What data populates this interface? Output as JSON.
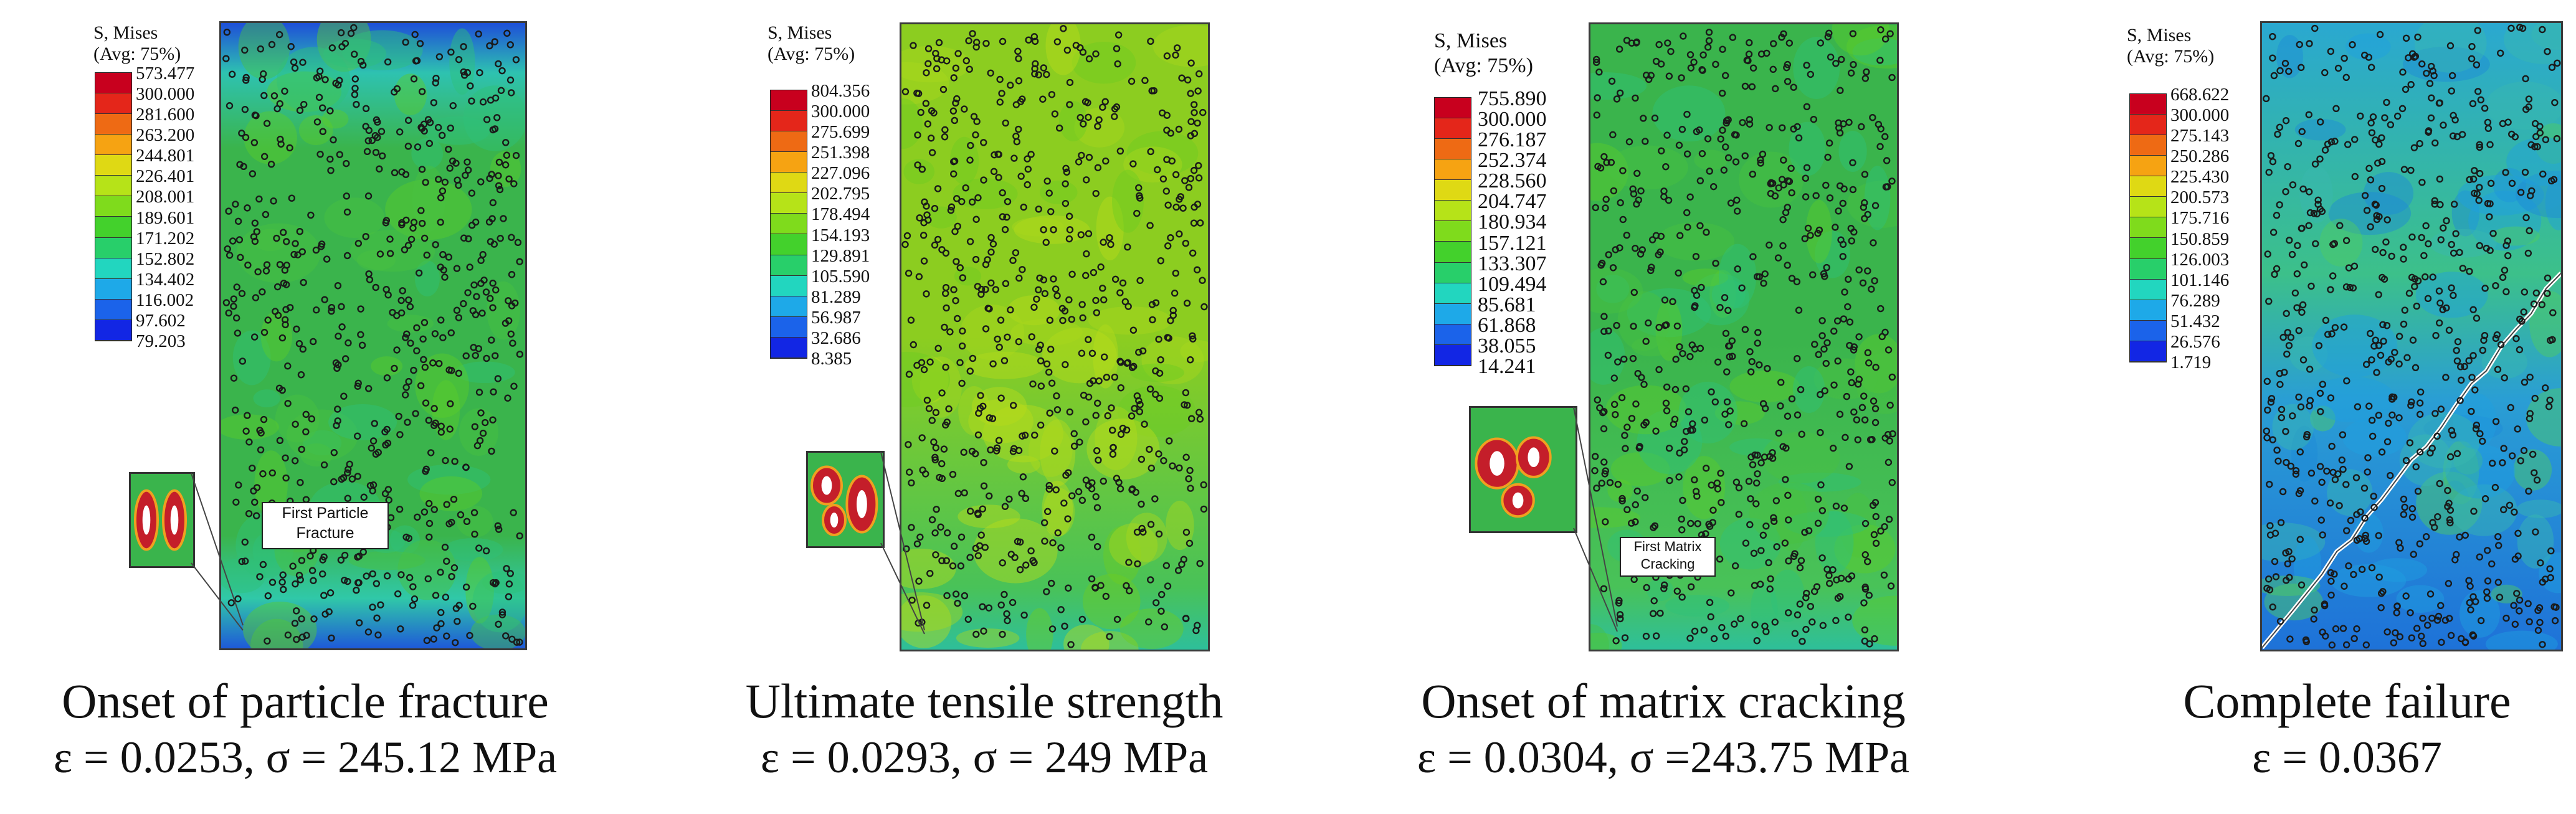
{
  "panels": [
    {
      "legend_title": "S, Mises\n(Avg: 75%)",
      "ticks": [
        "573.477",
        "300.000",
        "281.600",
        "263.200",
        "244.801",
        "226.401",
        "208.001",
        "189.601",
        "171.202",
        "152.802",
        "134.402",
        "116.002",
        "97.602",
        "79.203"
      ],
      "callout": "First Particle\nFracture",
      "caption_title": "Onset of particle fracture",
      "caption_values": "ε = 0.0253, σ = 245.12 MPa"
    },
    {
      "legend_title": "S, Mises\n(Avg: 75%)",
      "ticks": [
        "804.356",
        "300.000",
        "275.699",
        "251.398",
        "227.096",
        "202.795",
        "178.494",
        "154.193",
        "129.891",
        "105.590",
        "81.289",
        "56.987",
        "32.686",
        "8.385"
      ],
      "callout": "",
      "caption_title": "Ultimate tensile strength",
      "caption_values": "ε = 0.0293, σ = 249 MPa"
    },
    {
      "legend_title": "S, Mises\n(Avg: 75%)",
      "ticks": [
        "755.890",
        "300.000",
        "276.187",
        "252.374",
        "228.560",
        "204.747",
        "180.934",
        "157.121",
        "133.307",
        "109.494",
        "85.681",
        "61.868",
        "38.055",
        "14.241"
      ],
      "callout": "First Matrix\nCracking",
      "caption_title": "Onset of matrix cracking",
      "caption_values": "ε = 0.0304, σ =243.75 MPa"
    },
    {
      "legend_title": "S, Mises\n(Avg: 75%)",
      "ticks": [
        "668.622",
        "300.000",
        "275.143",
        "250.286",
        "225.430",
        "200.573",
        "175.716",
        "150.859",
        "126.003",
        "101.146",
        "76.289",
        "51.432",
        "26.576",
        "1.719"
      ],
      "callout": "",
      "caption_title": "Complete failure",
      "caption_values": "ε = 0.0367"
    }
  ],
  "colors": {
    "scale": [
      "#c8001e",
      "#e4261a",
      "#ee6a14",
      "#f6a312",
      "#dfd914",
      "#b6e318",
      "#7fdb1c",
      "#43d12c",
      "#28cf6a",
      "#22d6bf",
      "#1ea9e8",
      "#1b63ea",
      "#1226e4"
    ],
    "field_green": "#3ab44c",
    "field_yellowgreen": "#8ccd20",
    "field_blue": "#1e7bd6",
    "particle_edge": "#1a1a1a"
  }
}
